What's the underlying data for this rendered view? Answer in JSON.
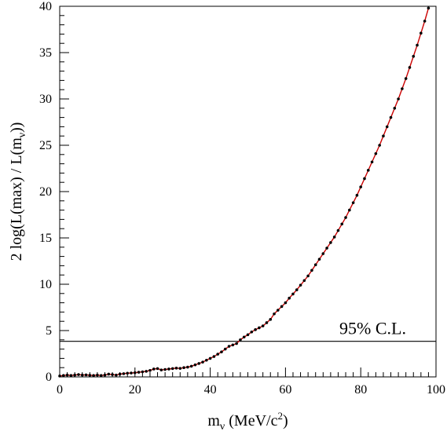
{
  "chart_data": {
    "type": "line",
    "title": "",
    "xlabel": {
      "main": "m",
      "sub": "ν",
      "unit_pre": " (MeV/c",
      "unit_sup": "2",
      "unit_post": ")"
    },
    "ylabel": {
      "pre": "2 log(L(max) / L(m",
      "sub": "ν",
      "post": "))"
    },
    "xlim": [
      0,
      100
    ],
    "ylim": [
      0,
      40
    ],
    "xticks": [
      0,
      20,
      40,
      60,
      80,
      100
    ],
    "yticks": [
      0,
      5,
      10,
      15,
      20,
      25,
      30,
      35,
      40
    ],
    "xtick_labels": [
      "0",
      "20",
      "40",
      "60",
      "80",
      "100"
    ],
    "ytick_labels": [
      "0",
      "5",
      "10",
      "15",
      "20",
      "25",
      "30",
      "35",
      "40"
    ],
    "grid": false,
    "reference_line": {
      "y": 3.84,
      "label": "95% C.L."
    },
    "series": [
      {
        "color": "#cc0000",
        "marker_color": "#000000",
        "x": [
          0,
          1,
          2,
          3,
          4,
          5,
          6,
          7,
          8,
          9,
          10,
          11,
          12,
          13,
          14,
          15,
          16,
          17,
          18,
          19,
          20,
          21,
          22,
          23,
          24,
          25,
          26,
          27,
          28,
          29,
          30,
          31,
          32,
          33,
          34,
          35,
          36,
          37,
          38,
          39,
          40,
          41,
          42,
          43,
          44,
          45,
          46,
          47,
          48,
          49,
          50,
          51,
          52,
          53,
          54,
          55,
          56,
          57,
          58,
          59,
          60,
          61,
          62,
          63,
          64,
          65,
          66,
          67,
          68,
          69,
          70,
          71,
          72,
          73,
          74,
          75,
          76,
          77,
          78,
          79,
          80,
          81,
          82,
          83,
          84,
          85,
          86,
          87,
          88,
          89,
          90,
          91,
          92,
          93,
          94,
          95,
          96,
          97,
          98
        ],
        "y": [
          0.1,
          0.15,
          0.2,
          0.15,
          0.2,
          0.25,
          0.2,
          0.22,
          0.18,
          0.15,
          0.2,
          0.15,
          0.2,
          0.3,
          0.25,
          0.2,
          0.3,
          0.35,
          0.4,
          0.42,
          0.45,
          0.5,
          0.55,
          0.6,
          0.7,
          0.85,
          0.9,
          0.75,
          0.8,
          0.85,
          0.9,
          0.95,
          0.92,
          1.0,
          1.05,
          1.15,
          1.3,
          1.45,
          1.6,
          1.8,
          2.0,
          2.2,
          2.45,
          2.7,
          3.0,
          3.3,
          3.45,
          3.6,
          4.0,
          4.3,
          4.55,
          4.85,
          5.1,
          5.3,
          5.5,
          5.85,
          6.2,
          6.8,
          7.2,
          7.6,
          8.0,
          8.5,
          8.95,
          9.4,
          9.9,
          10.4,
          10.9,
          11.5,
          12.1,
          12.7,
          13.3,
          13.9,
          14.5,
          15.1,
          15.8,
          16.5,
          17.2,
          18.0,
          18.8,
          19.6,
          20.5,
          21.4,
          22.3,
          23.2,
          24.1,
          25.0,
          26.0,
          27.0,
          28.0,
          29.0,
          30.0,
          31.1,
          32.2,
          33.4,
          34.6,
          35.8,
          37.1,
          38.4,
          39.8
        ]
      }
    ]
  }
}
